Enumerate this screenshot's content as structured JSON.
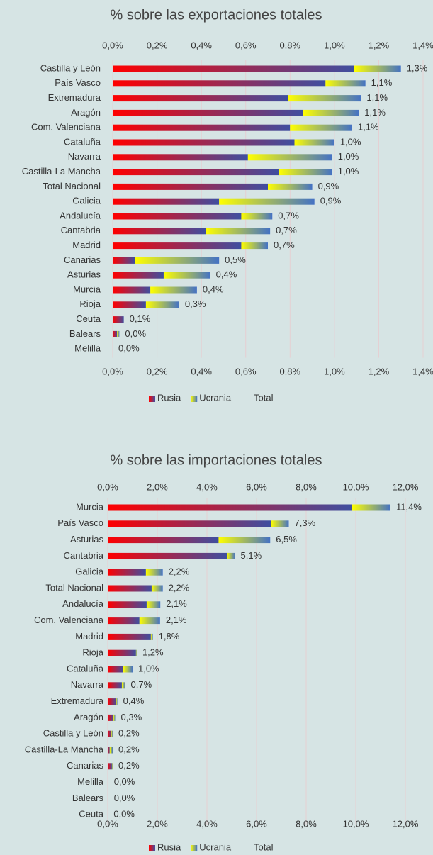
{
  "chart_data": [
    {
      "type": "stacked_barh",
      "title": "% sobre las exportaciones totales",
      "categories": [
        "Castilla y León",
        "País Vasco",
        "Extremadura",
        "Aragón",
        "Com. Valenciana",
        "Cataluña",
        "Navarra",
        "Castilla-La Mancha",
        "Total Nacional",
        "Galicia",
        "Andalucía",
        "Cantabria",
        "Madrid",
        "Canarias",
        "Asturias",
        "Murcia",
        "Rioja",
        "Ceuta",
        "Balears",
        "Melilla"
      ],
      "series": [
        {
          "name": "Rusia",
          "color": [
            "#ff0000",
            "#3f4fa0"
          ],
          "values": [
            1.09,
            0.96,
            0.79,
            0.86,
            0.8,
            0.82,
            0.61,
            0.75,
            0.7,
            0.48,
            0.58,
            0.42,
            0.58,
            0.1,
            0.23,
            0.17,
            0.15,
            0.05,
            0.02,
            0
          ]
        },
        {
          "name": "Ucrania",
          "color": [
            "#ffff00",
            "#4472c4"
          ],
          "values": [
            0.21,
            0.18,
            0.33,
            0.25,
            0.28,
            0.18,
            0.38,
            0.24,
            0.2,
            0.43,
            0.14,
            0.29,
            0.12,
            0.38,
            0.21,
            0.21,
            0.15,
            0,
            0.01,
            0
          ]
        },
        {
          "name": "Total",
          "values": [
            1.3,
            1.1,
            1.1,
            1.1,
            1.1,
            1.0,
            1.0,
            1.0,
            0.9,
            0.9,
            0.7,
            0.7,
            0.7,
            0.5,
            0.4,
            0.4,
            0.3,
            0.1,
            0.0,
            0.0
          ],
          "value_labels": [
            "1,3%",
            "1,1%",
            "1,1%",
            "1,1%",
            "1,1%",
            "1,0%",
            "1,0%",
            "1,0%",
            "0,9%",
            "0,9%",
            "0,7%",
            "0,7%",
            "0,7%",
            "0,5%",
            "0,4%",
            "0,4%",
            "0,3%",
            "0,1%",
            "0,0%",
            "0,0%"
          ]
        }
      ],
      "xlim": [
        0,
        1.4
      ],
      "xticks": [
        {
          "value": 0,
          "label": "0,0%"
        },
        {
          "value": 0.2,
          "label": "0,2%"
        },
        {
          "value": 0.4,
          "label": "0,4%"
        },
        {
          "value": 0.6,
          "label": "0,6%"
        },
        {
          "value": 0.8,
          "label": "0,8%"
        },
        {
          "value": 1.0,
          "label": "1,0%"
        },
        {
          "value": 1.2,
          "label": "1,2%"
        },
        {
          "value": 1.4,
          "label": "1,4%"
        }
      ],
      "grid": true,
      "legend": "bottom"
    },
    {
      "type": "stacked_barh",
      "title": "% sobre las importaciones totales",
      "categories": [
        "Murcia",
        "País Vasco",
        "Asturias",
        "Cantabria",
        "Galicia",
        "Total Nacional",
        "Andalucía",
        "Com. Valenciana",
        "Madrid",
        "Rioja",
        "Cataluña",
        "Navarra",
        "Extremadura",
        "Aragón",
        "Castilla y León",
        "Castilla-La Mancha",
        "Canarias",
        "Melilla",
        "Balears",
        "Ceuta"
      ],
      "series": [
        {
          "name": "Rusia",
          "color": [
            "#ff0000",
            "#3f4fa0"
          ],
          "values": [
            9.85,
            6.58,
            4.47,
            4.8,
            1.54,
            1.77,
            1.57,
            1.28,
            1.74,
            1.14,
            0.63,
            0.57,
            0.34,
            0.23,
            0.15,
            0.08,
            0.17,
            0.01,
            0,
            0.01
          ]
        },
        {
          "name": "Ucrania",
          "color": [
            "#ffff00",
            "#4472c4"
          ],
          "values": [
            1.55,
            0.72,
            2.08,
            0.33,
            0.68,
            0.45,
            0.55,
            0.83,
            0.08,
            0.03,
            0.37,
            0.13,
            0.05,
            0.07,
            0.05,
            0.12,
            0.03,
            0.01,
            0.02,
            0
          ]
        },
        {
          "name": "Total",
          "values": [
            11.4,
            7.3,
            6.5,
            5.1,
            2.2,
            2.2,
            2.1,
            2.1,
            1.8,
            1.2,
            1.0,
            0.7,
            0.4,
            0.3,
            0.2,
            0.2,
            0.2,
            0.0,
            0.0,
            0.0
          ],
          "value_labels": [
            "11,4%",
            "7,3%",
            "6,5%",
            "5,1%",
            "2,2%",
            "2,2%",
            "2,1%",
            "2,1%",
            "1,8%",
            "1,2%",
            "1,0%",
            "0,7%",
            "0,4%",
            "0,3%",
            "0,2%",
            "0,2%",
            "0,2%",
            "0,0%",
            "0,0%",
            "0,0%"
          ]
        }
      ],
      "xlim": [
        0,
        12
      ],
      "xticks": [
        {
          "value": 0,
          "label": "0,0%"
        },
        {
          "value": 2,
          "label": "2,0%"
        },
        {
          "value": 4,
          "label": "4,0%"
        },
        {
          "value": 6,
          "label": "6,0%"
        },
        {
          "value": 8,
          "label": "8,0%"
        },
        {
          "value": 10,
          "label": "10,0%"
        },
        {
          "value": 12,
          "label": "12,0%"
        }
      ],
      "grid": true,
      "legend": "bottom"
    }
  ]
}
